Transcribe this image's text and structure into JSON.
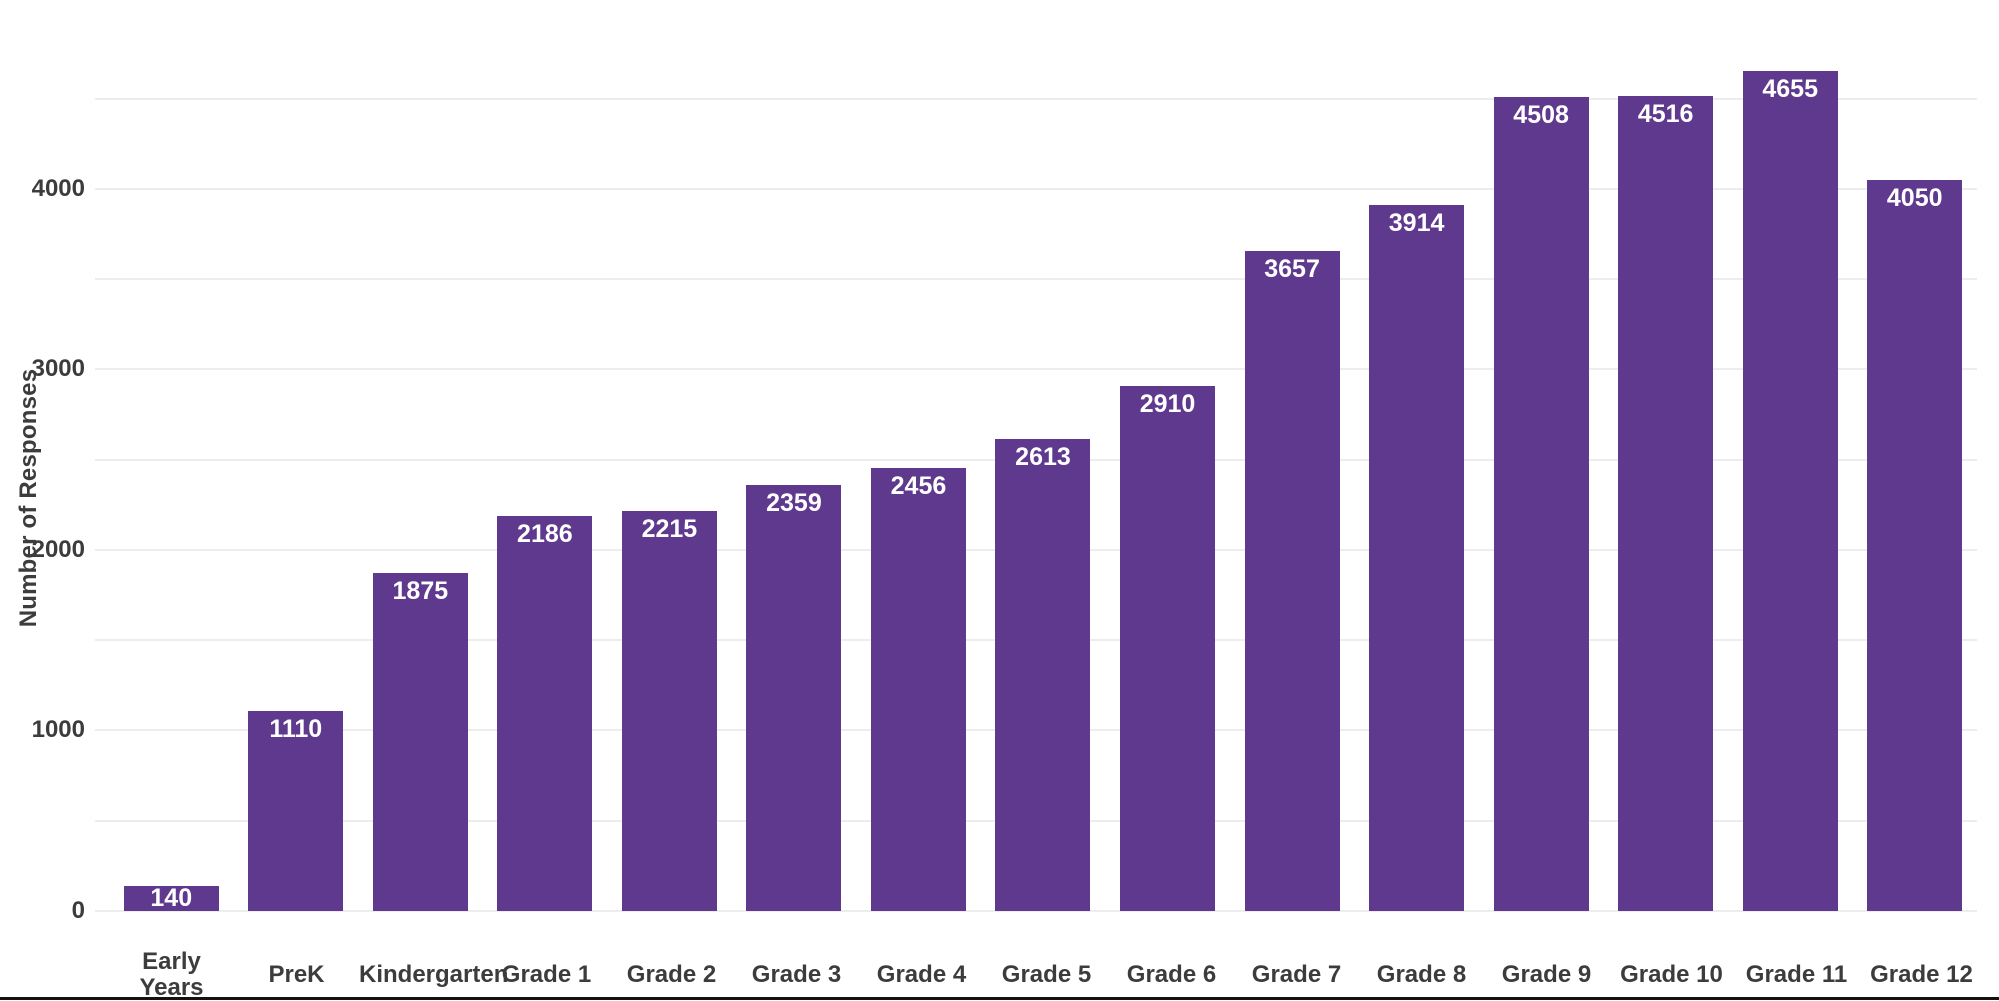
{
  "chart_data": {
    "type": "bar",
    "title": "",
    "xlabel": "",
    "ylabel": "Number of Responses",
    "categories": [
      "Early Years",
      "PreK",
      "Kindergarten",
      "Grade 1",
      "Grade 2",
      "Grade 3",
      "Grade 4",
      "Grade 5",
      "Grade 6",
      "Grade 7",
      "Grade 8",
      "Grade 9",
      "Grade 10",
      "Grade 11",
      "Grade 12"
    ],
    "values": [
      140,
      1110,
      1875,
      2186,
      2215,
      2359,
      2456,
      2613,
      2910,
      3657,
      3914,
      4508,
      4516,
      4655,
      4050
    ],
    "ylim": [
      0,
      4700
    ],
    "yticks": [
      0,
      1000,
      2000,
      3000,
      4000
    ],
    "gridlines": [
      0,
      500,
      1000,
      1500,
      2000,
      2500,
      3000,
      3500,
      4000,
      4500
    ],
    "grid": "on",
    "legend": "none",
    "value_labels": "inside-top"
  },
  "colors": {
    "bar": "#5e398e",
    "gridline": "#ededed",
    "axis_text": "#3c3c3c",
    "value_label_text": "#ffffff",
    "bottom_line": "#121212",
    "background": "#ffffff"
  }
}
